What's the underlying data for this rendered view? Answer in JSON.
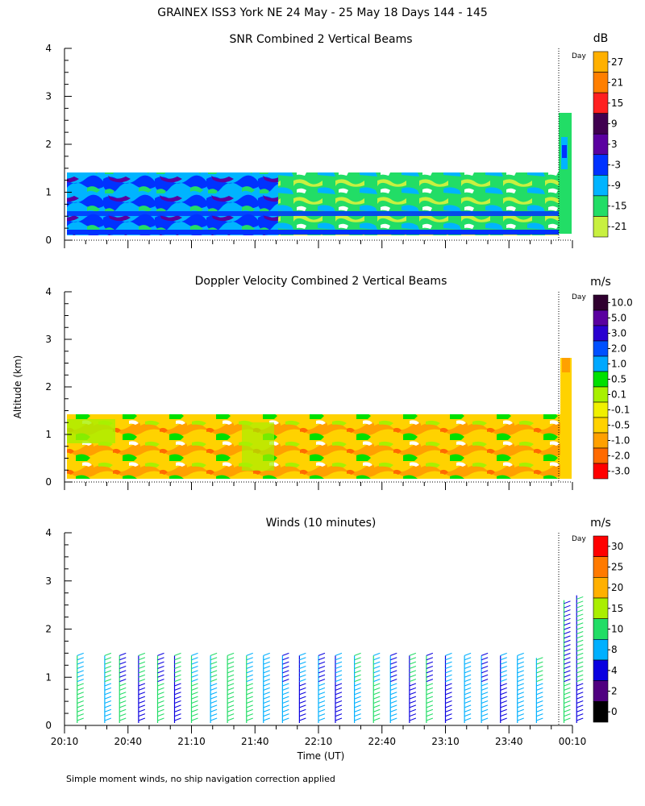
{
  "figure": {
    "title": "GRAINEX ISS3 York NE  24 May - 25 May 18 Days 144 - 145",
    "ylabel": "Altitude (km)",
    "xlabel": "Time (UT)",
    "footnote": "Simple moment winds, no ship navigation correction applied",
    "day_marker": "Day"
  },
  "chart_data": [
    {
      "type": "heatmap",
      "title": "SNR Combined 2 Vertical Beams",
      "ylabel": "Altitude (km)",
      "ylim": [
        0,
        4
      ],
      "yticks": [
        "0",
        "1",
        "2",
        "3",
        "4"
      ],
      "xlim_minutes": [
        1210,
        1450
      ],
      "colorbar_unit": "dB",
      "colorbar_labels": [
        "27",
        "21",
        "15",
        "9",
        "3",
        "-3",
        "-9",
        "-15",
        "-21"
      ],
      "colorbar_colors": [
        "#ffb000",
        "#ff7f00",
        "#ff2020",
        "#400050",
        "#5a00a0",
        "#0032ff",
        "#00b4ff",
        "#22dd66",
        "#c8f040"
      ],
      "data_top_km": 1.4,
      "day_boundary_minutes": 1440,
      "post_boundary_top_km": 2.6
    },
    {
      "type": "heatmap",
      "title": "Doppler Velocity Combined 2 Vertical Beams",
      "ylabel": "Altitude (km)",
      "ylim": [
        0,
        4
      ],
      "yticks": [
        "0",
        "1",
        "2",
        "3",
        "4"
      ],
      "xlim_minutes": [
        1210,
        1450
      ],
      "colorbar_unit": "m/s",
      "colorbar_labels": [
        "10.0",
        "5.0",
        "3.0",
        "2.0",
        "1.0",
        "0.5",
        "0.1",
        "-0.1",
        "-0.5",
        "-1.0",
        "-2.0",
        "-3.0"
      ],
      "colorbar_colors": [
        "#300030",
        "#5a00a0",
        "#2a00d0",
        "#0050ff",
        "#00a8ff",
        "#00e000",
        "#a8f000",
        "#f0f000",
        "#ffd200",
        "#ffa000",
        "#ff6a00",
        "#ff0000"
      ],
      "data_top_km": 1.4,
      "day_boundary_minutes": 1440,
      "post_boundary_top_km": 2.55
    },
    {
      "type": "scatter",
      "title": "Winds (10 minutes)",
      "ylabel": "Altitude (km)",
      "ylim": [
        0,
        4
      ],
      "yticks": [
        "0",
        "1",
        "2",
        "3",
        "4"
      ],
      "xlim_minutes": [
        1210,
        1450
      ],
      "colorbar_unit": "m/s",
      "colorbar_labels": [
        "30",
        "25",
        "20",
        "15",
        "10",
        "8",
        "4",
        "2",
        "0"
      ],
      "colorbar_colors": [
        "#ff0000",
        "#ff7a00",
        "#ffb000",
        "#aaee00",
        "#22dd66",
        "#00b0ff",
        "#0a00e0",
        "#500080",
        "#000000"
      ],
      "profile_times_minutes": [
        1216,
        1229,
        1236,
        1245,
        1254,
        1262,
        1270,
        1279,
        1287,
        1296,
        1304,
        1313,
        1321,
        1330,
        1338,
        1347,
        1356,
        1364,
        1373,
        1381,
        1390,
        1399,
        1407,
        1416,
        1424,
        1433,
        1446,
        1452
      ],
      "profile_tops_km": [
        1.45,
        1.45,
        1.45,
        1.45,
        1.45,
        1.45,
        1.45,
        1.45,
        1.45,
        1.45,
        1.45,
        1.45,
        1.45,
        1.45,
        1.45,
        1.45,
        1.45,
        1.45,
        1.45,
        1.45,
        1.45,
        1.45,
        1.45,
        1.45,
        1.45,
        1.4,
        2.6,
        2.7
      ],
      "profile_colors": [
        "#22dd66",
        "#00b0ff",
        "#22dd66",
        "#0a00e0",
        "#22dd66",
        "#0a00e0",
        "#22dd66",
        "#00b0ff",
        "#22dd66",
        "#22dd66",
        "#00b0ff",
        "#00b0ff",
        "#0a00e0",
        "#00b0ff",
        "#0a00e0",
        "#00b0ff",
        "#22dd66",
        "#00b0ff",
        "#0a00e0",
        "#22dd66",
        "#0a00e0",
        "#00b0ff",
        "#00b0ff",
        "#0a00e0",
        "#00b0ff",
        "#00b0ff",
        "#22dd66",
        "#0a00e0"
      ],
      "day_boundary_minutes": 1440
    }
  ],
  "x_axis": {
    "tick_labels": [
      "20:10",
      "20:40",
      "21:10",
      "21:40",
      "22:10",
      "22:40",
      "23:10",
      "23:40",
      "00:10"
    ],
    "tick_minutes": [
      1210,
      1240,
      1270,
      1300,
      1330,
      1360,
      1390,
      1420,
      1450
    ]
  }
}
